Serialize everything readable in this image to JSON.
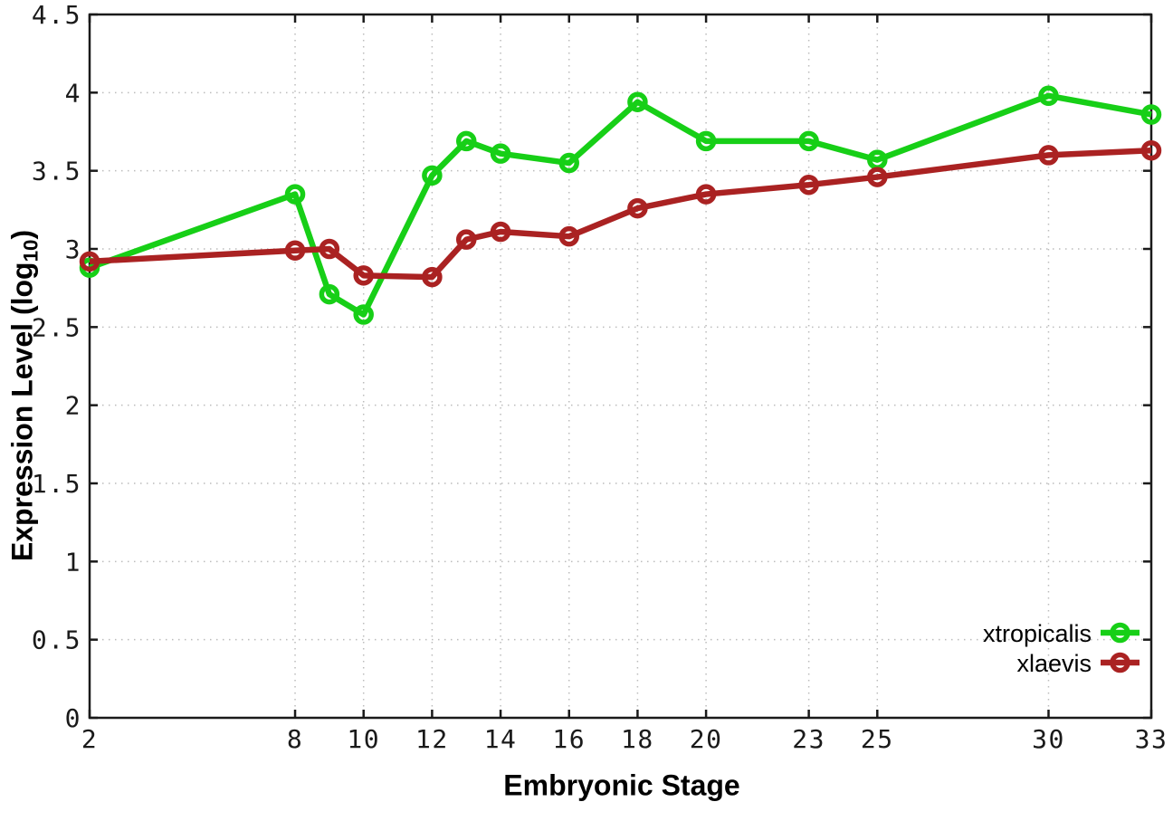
{
  "figure": {
    "xlabel": "Embryonic Stage",
    "ylabel_main": "Expression Level (log",
    "ylabel_sub": "10",
    "ylabel_close": ")"
  },
  "chart_data": {
    "type": "line",
    "title": "",
    "xlabel": "Embryonic Stage",
    "ylabel": "Expression Level (log10)",
    "xlim": [
      2,
      33
    ],
    "ylim": [
      0,
      4.5
    ],
    "grid": true,
    "grid_style": "dotted",
    "legend_position": "bottom-right-inside",
    "x_ticks": [
      2,
      8,
      10,
      12,
      14,
      16,
      18,
      20,
      23,
      25,
      30,
      33
    ],
    "y_ticks": [
      [
        0,
        "0"
      ],
      [
        0.5,
        "0.5"
      ],
      [
        1,
        "1"
      ],
      [
        1.5,
        "1.5"
      ],
      [
        2,
        "2"
      ],
      [
        2.5,
        "2.5"
      ],
      [
        3,
        "3"
      ],
      [
        3.5,
        "3.5"
      ],
      [
        4,
        "4"
      ],
      [
        4.5,
        "4.5"
      ]
    ],
    "x": [
      2,
      8,
      9,
      10,
      12,
      13,
      14,
      16,
      18,
      20,
      23,
      25,
      30,
      33
    ],
    "series": [
      {
        "name": "xtropicalis",
        "color": "#17cf17",
        "marker": "open-circle",
        "values": [
          2.88,
          3.35,
          2.71,
          2.58,
          3.47,
          3.69,
          3.61,
          3.55,
          3.94,
          3.69,
          3.69,
          3.57,
          3.98,
          3.86
        ]
      },
      {
        "name": "xlaevis",
        "color": "#aa2222",
        "marker": "open-circle",
        "values": [
          2.92,
          2.99,
          3.0,
          2.83,
          2.82,
          3.06,
          3.11,
          3.08,
          3.26,
          3.35,
          3.41,
          3.46,
          3.6,
          3.63
        ]
      }
    ]
  },
  "style": {
    "background": "#ffffff",
    "axis_color": "#1a1a1a",
    "grid_color": "#bcbcbc",
    "tick_label_color": "#1a1a1a",
    "legend_text_color": "#000000"
  }
}
